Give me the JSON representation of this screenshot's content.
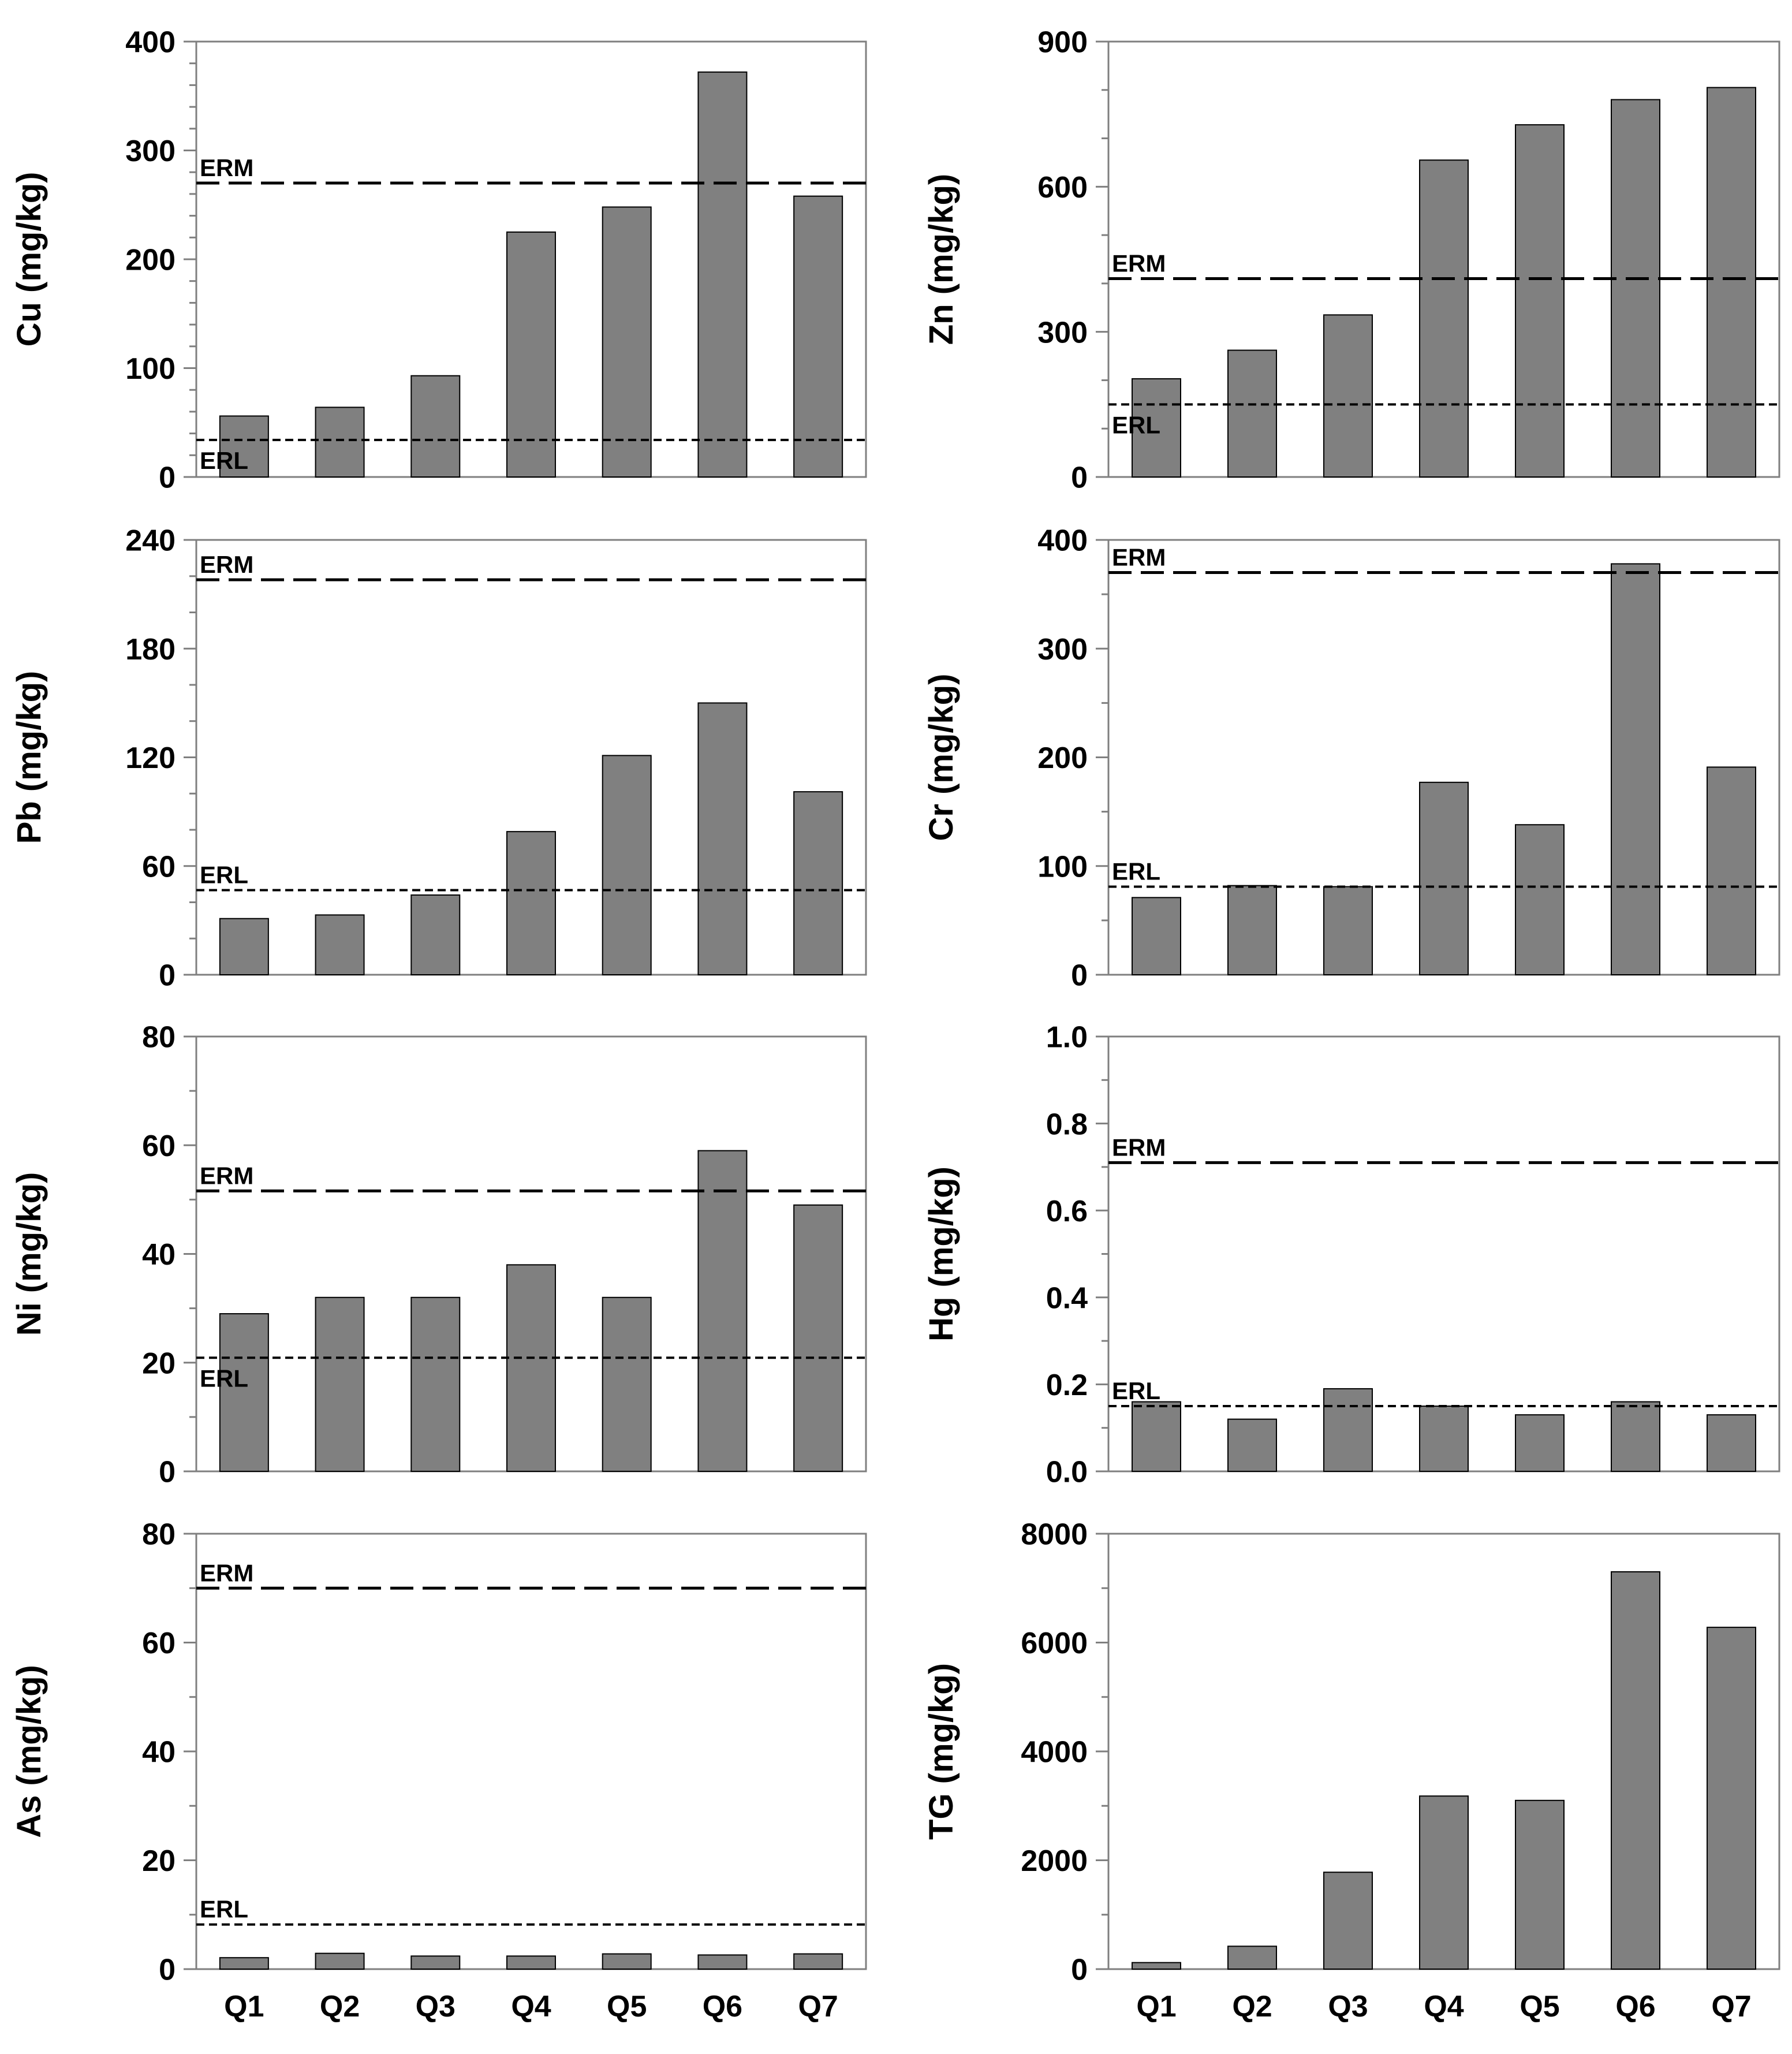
{
  "colors": {
    "bar_fill": "#808080",
    "bar_stroke": "#000000",
    "frame": "#7f7f7f",
    "reference_line": "#000000",
    "text": "#000000"
  },
  "chart_data": [
    {
      "type": "bar",
      "position": "row-1-left",
      "ylabel": "Cu (mg/kg)",
      "categories": [
        "Q1",
        "Q2",
        "Q3",
        "Q4",
        "Q5",
        "Q6",
        "Q7"
      ],
      "show_categories": false,
      "values": [
        56,
        64,
        93,
        225,
        248,
        372,
        258
      ],
      "ylim": [
        0,
        400
      ],
      "yticks": [
        0,
        100,
        200,
        300,
        400
      ],
      "ytick_labels": [
        "0",
        "100",
        "200",
        "300",
        "400"
      ],
      "minor_per_major": 5,
      "reference_lines": [
        {
          "label": "ERM",
          "value": 270,
          "style": "long-dash",
          "label_side": "above"
        },
        {
          "label": "ERL",
          "value": 34,
          "style": "short-dash",
          "label_side": "below"
        }
      ]
    },
    {
      "type": "bar",
      "position": "row-1-right",
      "ylabel": "Zn (mg/kg)",
      "categories": [
        "Q1",
        "Q2",
        "Q3",
        "Q4",
        "Q5",
        "Q6",
        "Q7"
      ],
      "show_categories": false,
      "values": [
        203,
        262,
        335,
        655,
        728,
        780,
        805
      ],
      "ylim": [
        0,
        900
      ],
      "yticks": [
        0,
        300,
        600,
        900
      ],
      "ytick_labels": [
        "0",
        "300",
        "600",
        "900"
      ],
      "minor_per_major": 3,
      "reference_lines": [
        {
          "label": "ERM",
          "value": 410,
          "style": "long-dash",
          "label_side": "above"
        },
        {
          "label": "ERL",
          "value": 150,
          "style": "short-dash",
          "label_side": "below"
        }
      ]
    },
    {
      "type": "bar",
      "position": "row-2-left",
      "ylabel": "Pb (mg/kg)",
      "categories": [
        "Q1",
        "Q2",
        "Q3",
        "Q4",
        "Q5",
        "Q6",
        "Q7"
      ],
      "show_categories": false,
      "values": [
        31,
        33,
        44,
        79,
        121,
        150,
        101
      ],
      "ylim": [
        0,
        240
      ],
      "yticks": [
        0,
        60,
        120,
        180,
        240
      ],
      "ytick_labels": [
        "0",
        "60",
        "120",
        "180",
        "240"
      ],
      "minor_per_major": 3,
      "reference_lines": [
        {
          "label": "ERM",
          "value": 218,
          "style": "long-dash",
          "label_side": "above"
        },
        {
          "label": "ERL",
          "value": 46.7,
          "style": "short-dash",
          "label_side": "above"
        }
      ]
    },
    {
      "type": "bar",
      "position": "row-2-right",
      "ylabel": "Cr (mg/kg)",
      "categories": [
        "Q1",
        "Q2",
        "Q3",
        "Q4",
        "Q5",
        "Q6",
        "Q7"
      ],
      "show_categories": false,
      "values": [
        71,
        82,
        81,
        177,
        138,
        378,
        191
      ],
      "ylim": [
        0,
        400
      ],
      "yticks": [
        0,
        100,
        200,
        300,
        400
      ],
      "ytick_labels": [
        "0",
        "100",
        "200",
        "300",
        "400"
      ],
      "minor_per_major": 2,
      "reference_lines": [
        {
          "label": "ERM",
          "value": 370,
          "style": "long-dash",
          "label_side": "above"
        },
        {
          "label": "ERL",
          "value": 81,
          "style": "short-dash",
          "label_side": "above"
        }
      ]
    },
    {
      "type": "bar",
      "position": "row-3-left",
      "ylabel": "Ni (mg/kg)",
      "categories": [
        "Q1",
        "Q2",
        "Q3",
        "Q4",
        "Q5",
        "Q6",
        "Q7"
      ],
      "show_categories": false,
      "values": [
        29,
        32,
        32,
        38,
        32,
        59,
        49
      ],
      "ylim": [
        0,
        80
      ],
      "yticks": [
        0,
        20,
        40,
        60,
        80
      ],
      "ytick_labels": [
        "0",
        "20",
        "40",
        "60",
        "80"
      ],
      "minor_per_major": 2,
      "reference_lines": [
        {
          "label": "ERM",
          "value": 51.6,
          "style": "long-dash",
          "label_side": "above"
        },
        {
          "label": "ERL",
          "value": 20.9,
          "style": "short-dash",
          "label_side": "below"
        }
      ]
    },
    {
      "type": "bar",
      "position": "row-3-right",
      "ylabel": "Hg (mg/kg)",
      "categories": [
        "Q1",
        "Q2",
        "Q3",
        "Q4",
        "Q5",
        "Q6",
        "Q7"
      ],
      "show_categories": false,
      "values": [
        0.16,
        0.12,
        0.19,
        0.15,
        0.13,
        0.16,
        0.13
      ],
      "ylim": [
        0,
        1.0
      ],
      "yticks": [
        0,
        0.2,
        0.4,
        0.6,
        0.8,
        1.0
      ],
      "ytick_labels": [
        "0.0",
        "0.2",
        "0.4",
        "0.6",
        "0.8",
        "1.0"
      ],
      "minor_per_major": 2,
      "reference_lines": [
        {
          "label": "ERM",
          "value": 0.71,
          "style": "long-dash",
          "label_side": "above"
        },
        {
          "label": "ERL",
          "value": 0.15,
          "style": "short-dash",
          "label_side": "above"
        }
      ]
    },
    {
      "type": "bar",
      "position": "row-4-left",
      "ylabel": "As (mg/kg)",
      "categories": [
        "Q1",
        "Q2",
        "Q3",
        "Q4",
        "Q5",
        "Q6",
        "Q7"
      ],
      "show_categories": true,
      "values": [
        2.1,
        2.9,
        2.4,
        2.4,
        2.8,
        2.6,
        2.8
      ],
      "ylim": [
        0,
        80
      ],
      "yticks": [
        0,
        20,
        40,
        60,
        80
      ],
      "ytick_labels": [
        "0",
        "20",
        "40",
        "60",
        "80"
      ],
      "minor_per_major": 2,
      "reference_lines": [
        {
          "label": "ERM",
          "value": 70,
          "style": "long-dash",
          "label_side": "above"
        },
        {
          "label": "ERL",
          "value": 8.2,
          "style": "short-dash",
          "label_side": "above"
        }
      ]
    },
    {
      "type": "bar",
      "position": "row-4-right",
      "ylabel": "TG (mg/kg)",
      "categories": [
        "Q1",
        "Q2",
        "Q3",
        "Q4",
        "Q5",
        "Q6",
        "Q7"
      ],
      "show_categories": true,
      "values": [
        120,
        420,
        1780,
        3180,
        3100,
        7300,
        6280
      ],
      "ylim": [
        0,
        8000
      ],
      "yticks": [
        0,
        2000,
        4000,
        6000,
        8000
      ],
      "ytick_labels": [
        "0",
        "2000",
        "4000",
        "6000",
        "8000"
      ],
      "minor_per_major": 2,
      "reference_lines": []
    }
  ]
}
